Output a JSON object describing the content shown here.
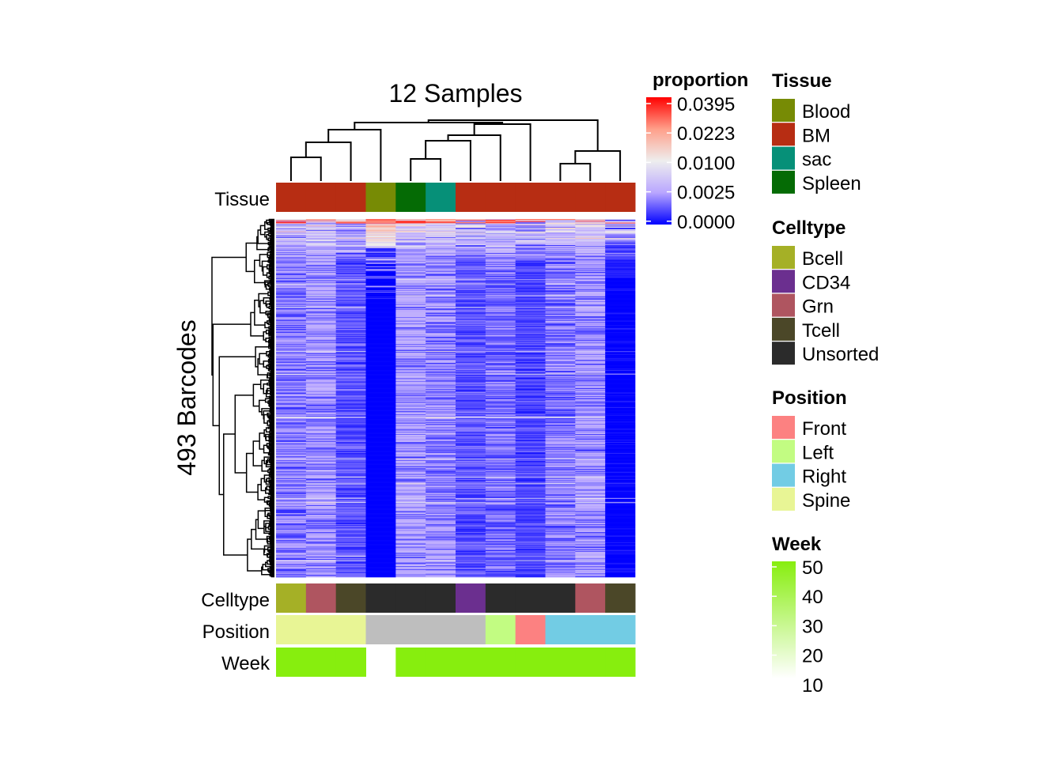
{
  "chart_data": {
    "type": "heatmap",
    "title": "12 Samples",
    "ylabel": "493 Barcodes",
    "n_rows": 493,
    "n_cols": 12,
    "columns": [
      {
        "Tissue": "BM",
        "Celltype": "Bcell",
        "Position": "Spine",
        "Week": 50
      },
      {
        "Tissue": "BM",
        "Celltype": "Grn",
        "Position": "Spine",
        "Week": 50
      },
      {
        "Tissue": "BM",
        "Celltype": "Tcell",
        "Position": "Spine",
        "Week": 50
      },
      {
        "Tissue": "Blood",
        "Celltype": "Unsorted",
        "Position": null,
        "Week": null
      },
      {
        "Tissue": "Spleen",
        "Celltype": "Unsorted",
        "Position": null,
        "Week": 50
      },
      {
        "Tissue": "sac",
        "Celltype": "Unsorted",
        "Position": null,
        "Week": 50
      },
      {
        "Tissue": "BM",
        "Celltype": "CD34",
        "Position": null,
        "Week": 50
      },
      {
        "Tissue": "BM",
        "Celltype": "Unsorted",
        "Position": "Left",
        "Week": 50
      },
      {
        "Tissue": "BM",
        "Celltype": "Unsorted",
        "Position": "Front",
        "Week": 50
      },
      {
        "Tissue": "BM",
        "Celltype": "Unsorted",
        "Position": "Right",
        "Week": 50
      },
      {
        "Tissue": "BM",
        "Celltype": "Grn",
        "Position": "Right",
        "Week": 50
      },
      {
        "Tissue": "BM",
        "Celltype": "Tcell",
        "Position": "Right",
        "Week": 50
      }
    ],
    "annotation_labels": {
      "top": "Tissue",
      "bottom": [
        "Celltype",
        "Position",
        "Week"
      ]
    },
    "color_scale": {
      "title": "proportion",
      "ticks": [
        "0.0395",
        "0.0223",
        "0.0100",
        "0.0025",
        "0.0000"
      ],
      "stops": [
        {
          "value": 0.0,
          "color": "#0000FF"
        },
        {
          "value": 0.0025,
          "color": "#B9A6FF"
        },
        {
          "value": 0.01,
          "color": "#EEEEEE"
        },
        {
          "value": 0.0223,
          "color": "#FF9F8A"
        },
        {
          "value": 0.0395,
          "color": "#FF0000"
        }
      ]
    },
    "na_color": "#BEBEBE",
    "legends": [
      {
        "title": "Tissue",
        "items": [
          {
            "label": "Blood",
            "color": "#778B05"
          },
          {
            "label": "BM",
            "color": "#B72D13"
          },
          {
            "label": "sac",
            "color": "#069078"
          },
          {
            "label": "Spleen",
            "color": "#056B05"
          }
        ]
      },
      {
        "title": "Celltype",
        "items": [
          {
            "label": "Bcell",
            "color": "#A5B026"
          },
          {
            "label": "CD34",
            "color": "#6B2F8F"
          },
          {
            "label": "Grn",
            "color": "#AF5560"
          },
          {
            "label": "Tcell",
            "color": "#4B4728"
          },
          {
            "label": "Unsorted",
            "color": "#2B2B2B"
          }
        ]
      },
      {
        "title": "Position",
        "items": [
          {
            "label": "Front",
            "color": "#FC8181"
          },
          {
            "label": "Left",
            "color": "#C2FC82"
          },
          {
            "label": "Right",
            "color": "#72CCE4"
          },
          {
            "label": "Spine",
            "color": "#E8F595"
          }
        ]
      }
    ],
    "week_scale": {
      "title": "Week",
      "ticks": [
        "50",
        "40",
        "30",
        "20",
        "10"
      ],
      "low_color": "#FFFFFF",
      "high_color": "#87EE0E"
    }
  }
}
